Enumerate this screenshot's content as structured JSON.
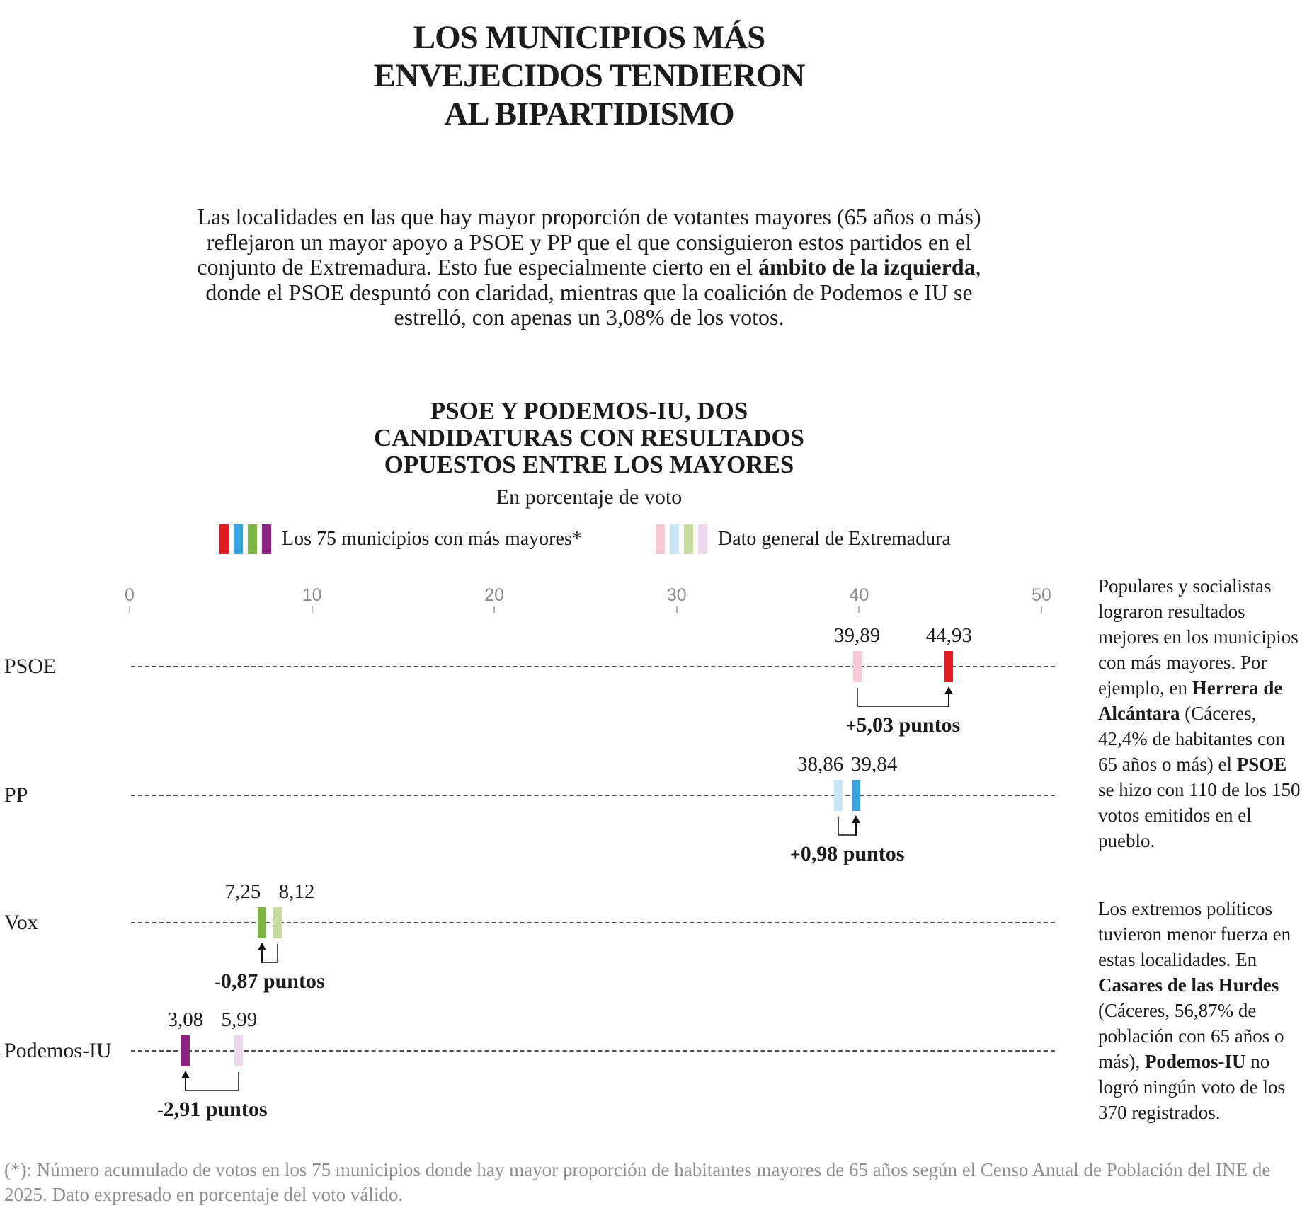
{
  "header": {
    "title_lines": [
      "LOS MUNICIPIOS MÁS",
      "ENVEJECIDOS TENDIERON",
      "AL BIPARTIDISMO"
    ],
    "intro_pre": "Las localidades en las que hay mayor proporción de votantes mayores (65 años o más) reflejaron un mayor apoyo a PSOE y PP que el que consiguieron estos partidos en el conjunto de Extremadura. Esto fue especialmente cierto en el ",
    "intro_bold": "ámbito de la izquierda",
    "intro_post": ", donde el PSOE despuntó con claridad, mientras que la coalición de Podemos e IU se estrelló, con apenas un 3,08% de los votos."
  },
  "chart": {
    "title_lines": [
      "PSOE Y PODEMOS-IU, DOS",
      "CANDIDATURAS CON RESULTADOS",
      "OPUESTOS ENTRE LOS MAYORES"
    ],
    "subtitle": "En porcentaje de voto",
    "legend": [
      {
        "label": "Los 75 municipios con más mayores*",
        "colors": [
          "#e11b23",
          "#3aa3dc",
          "#7eb345",
          "#8b2382"
        ]
      },
      {
        "label": "Dato general de Extremadura",
        "colors": [
          "#f7c9d4",
          "#c9e4f5",
          "#c6db9e",
          "#ead7eb"
        ]
      }
    ]
  },
  "chart_data": {
    "type": "bar",
    "variant": "dumbbell-comparison",
    "title": "PSOE Y PODEMOS-IU, DOS CANDIDATURAS CON RESULTADOS OPUESTOS ENTRE LOS MAYORES",
    "units_label": "En porcentaje de voto",
    "xlim": [
      0,
      50
    ],
    "x_ticks": [
      0,
      10,
      20,
      30,
      40,
      50
    ],
    "grid": "dotted-row-lines",
    "legend_position": "top",
    "categories": [
      "PSOE",
      "PP",
      "Vox",
      "Podemos-IU"
    ],
    "series": [
      {
        "name": "Los 75 municipios con más mayores*",
        "values": [
          44.93,
          39.84,
          7.25,
          3.08
        ],
        "value_labels": [
          "44,93",
          "39,84",
          "7,25",
          "3,08"
        ],
        "colors": [
          "#e11b23",
          "#3aa3dc",
          "#7eb345",
          "#8b2382"
        ]
      },
      {
        "name": "Dato general de Extremadura",
        "values": [
          39.89,
          38.86,
          8.12,
          5.99
        ],
        "value_labels": [
          "39,89",
          "38,86",
          "8,12",
          "5,99"
        ],
        "colors": [
          "#f7c9d4",
          "#c9e4f5",
          "#c6db9e",
          "#ead7eb"
        ]
      }
    ],
    "deltas": [
      {
        "sign": "+",
        "text": "5,03 puntos"
      },
      {
        "sign": "+",
        "text": "0,98 puntos"
      },
      {
        "sign": "-",
        "text": "0,87 puntos"
      },
      {
        "sign": "-",
        "text": "2,91 puntos"
      }
    ]
  },
  "annotations": {
    "block1": [
      {
        "t": "Populares y socialistas lograron resultados mejores en los municipios con más mayores. Por ejemplo, en "
      },
      {
        "t": "Herrera de Alcántara",
        "b": true
      },
      {
        "t": " (Cáceres, 42,4% de habitantes con 65 años o más) el "
      },
      {
        "t": "PSOE",
        "b": true
      },
      {
        "t": " se hizo con 110 de los 150 votos emitidos en el pueblo."
      }
    ],
    "block2": [
      {
        "t": "Los extremos políticos tuvieron menor fuerza en estas localidades. En "
      },
      {
        "t": "Casares de las Hurdes",
        "b": true
      },
      {
        "t": " (Cáceres, 56,87% de población con 65 años o más), "
      },
      {
        "t": "Podemos-IU",
        "b": true
      },
      {
        "t": " no logró ningún voto de los 370 registrados."
      }
    ]
  },
  "footnote": "(*): Número acumulado de votos en los 75 municipios donde hay mayor proporción de habitantes mayores de 65 años según el Censo Anual de Población del INE de 2025. Dato expresado en porcentaje del voto válido."
}
